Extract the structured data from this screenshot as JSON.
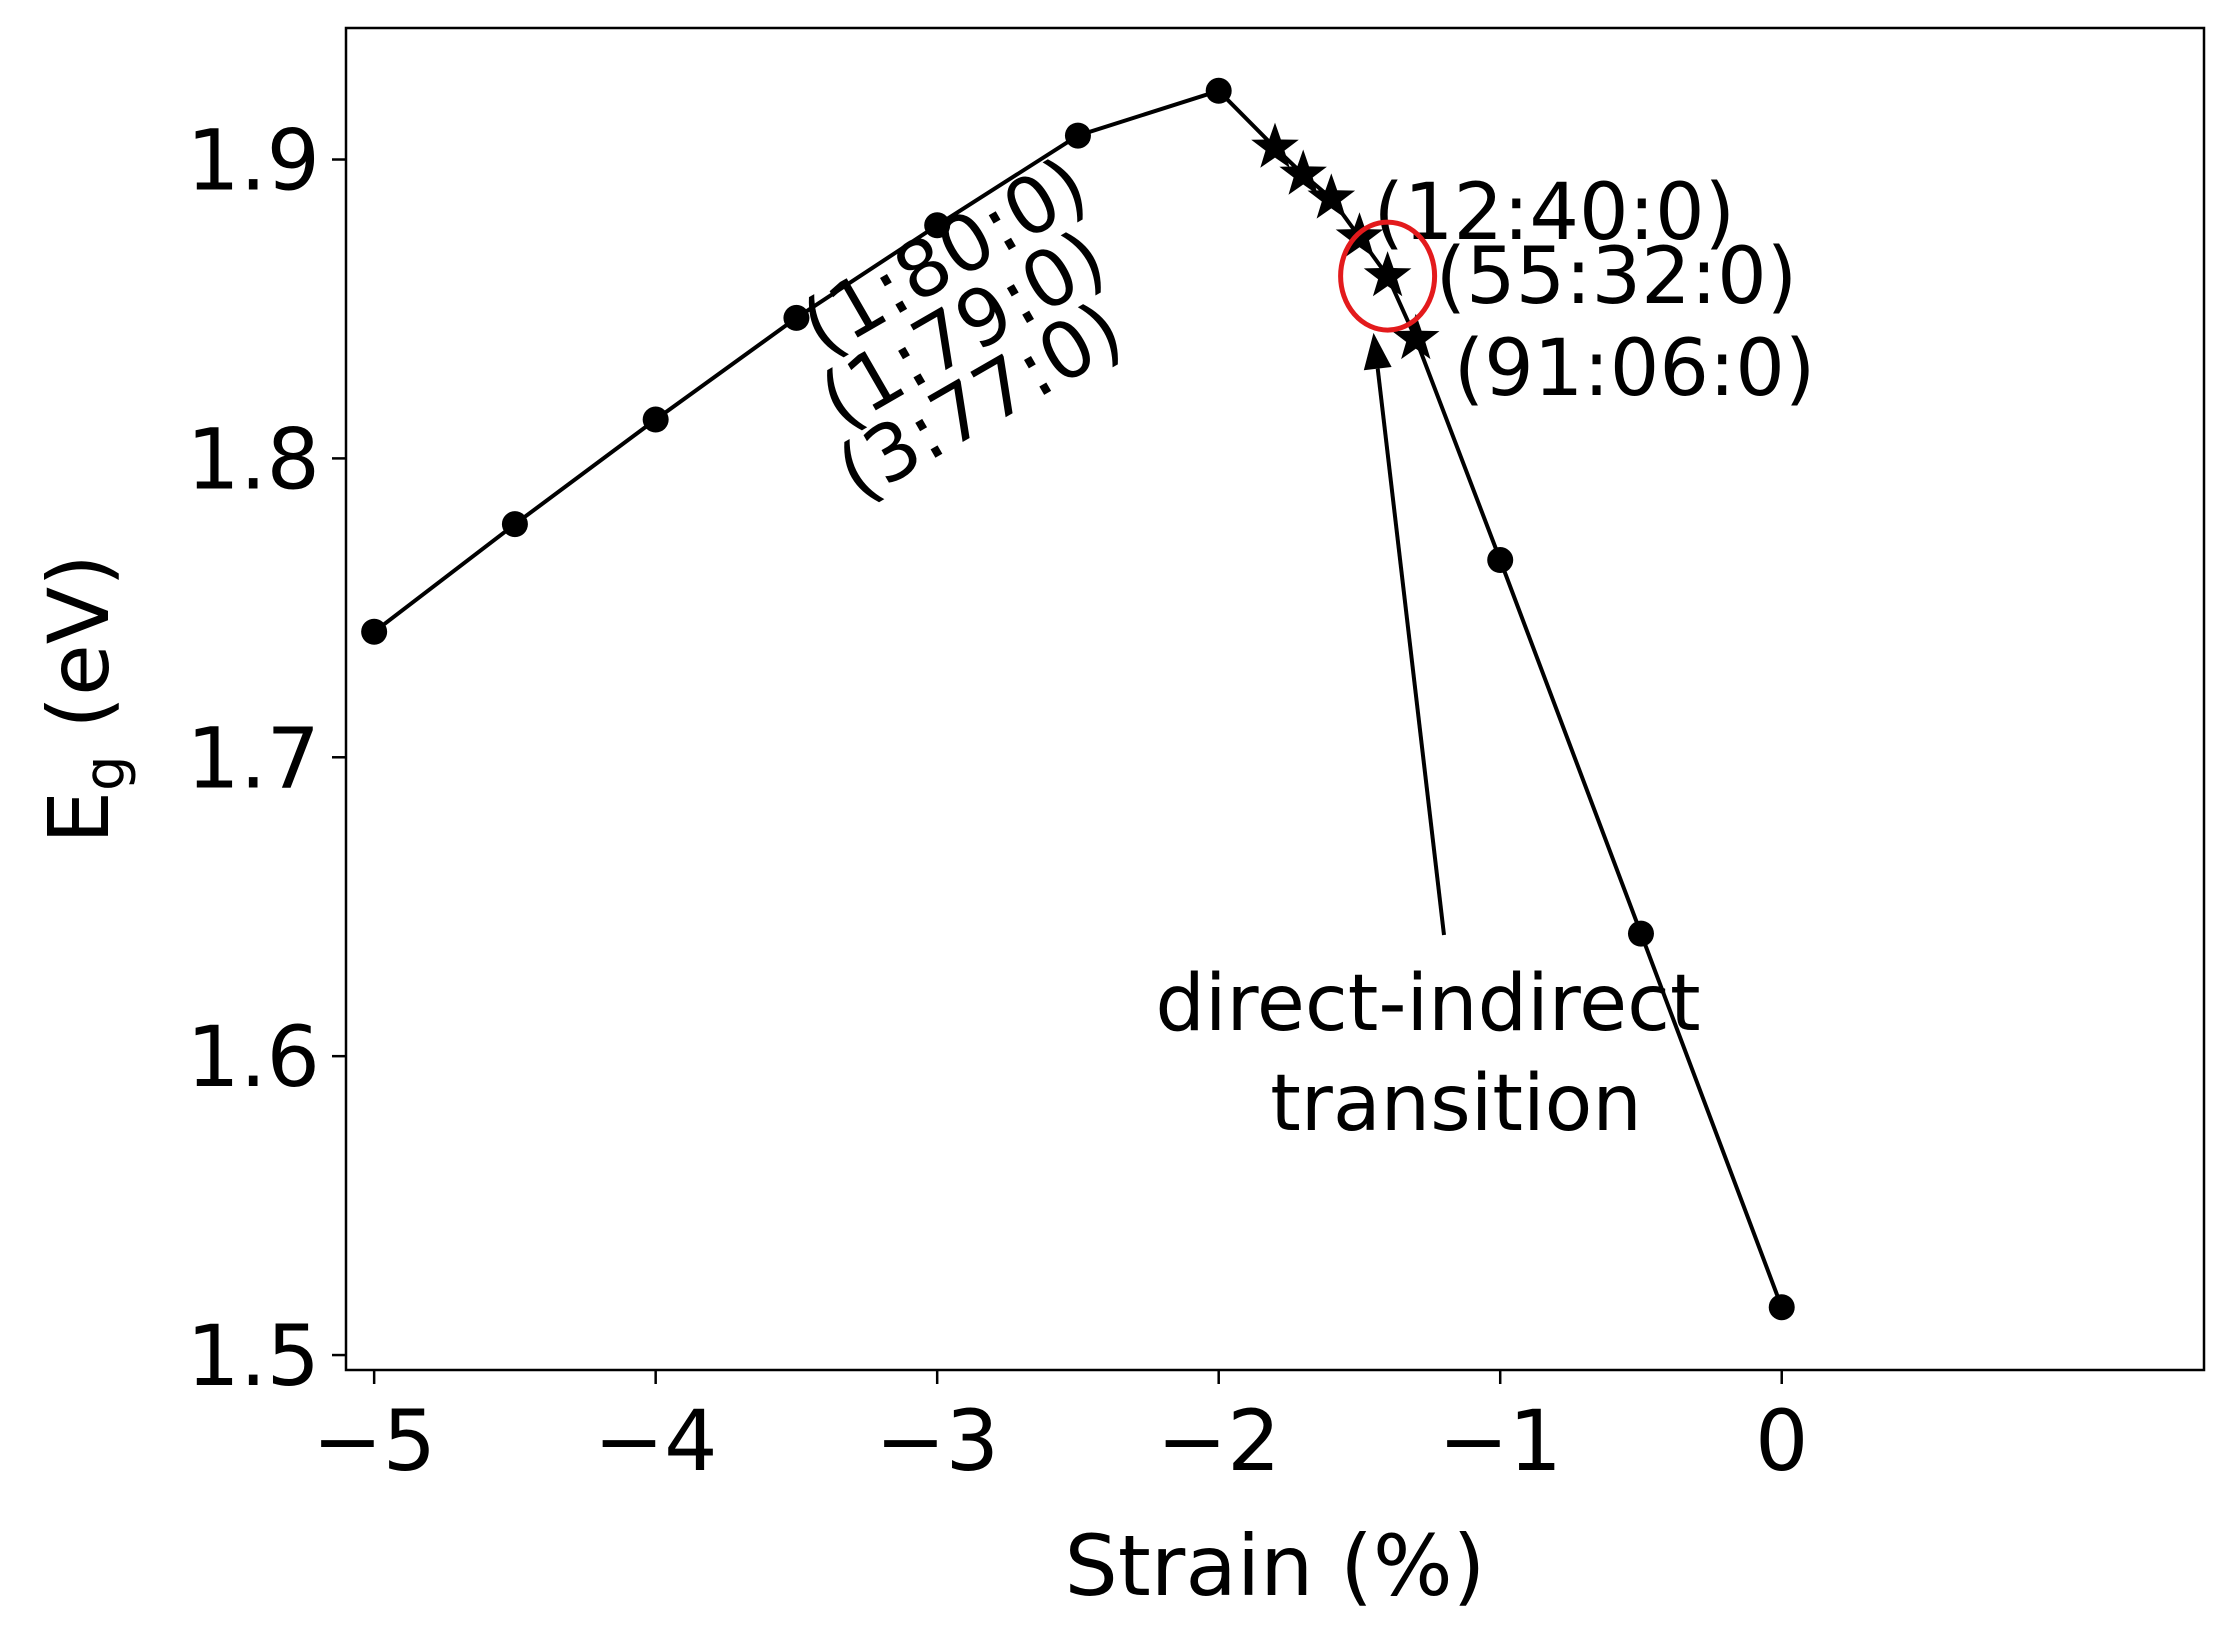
{
  "chart_data": {
    "type": "line",
    "xlabel": "Strain (%)",
    "ylabel": {
      "main": "E",
      "sub": "g",
      "rest": " (eV)"
    },
    "xlim": [
      -5.1,
      1.5
    ],
    "ylim": [
      1.495,
      1.944
    ],
    "x_ticks": [
      -5,
      -4,
      -3,
      -2,
      -1,
      0
    ],
    "x_tick_labels": [
      "−5",
      "−4",
      "−3",
      "−2",
      "−1",
      "0"
    ],
    "y_ticks": [
      1.5,
      1.6,
      1.7,
      1.8,
      1.9
    ],
    "y_tick_labels": [
      "1.5",
      "1.6",
      "1.7",
      "1.8",
      "1.9"
    ],
    "grid": false,
    "series": [
      {
        "marker": "circle",
        "color": "#000000",
        "x": [
          -5.0,
          -4.5,
          -4.0,
          -3.5,
          -3.0,
          -2.5,
          -2.0
        ],
        "y": [
          1.742,
          1.778,
          1.813,
          1.847,
          1.878,
          1.908,
          1.923
        ]
      },
      {
        "marker": "star",
        "color": "#000000",
        "x": [
          -1.8,
          -1.7,
          -1.6,
          -1.5,
          -1.4,
          -1.3
        ],
        "y": [
          1.904,
          1.895,
          1.887,
          1.874,
          1.861,
          1.84
        ]
      },
      {
        "marker": "circle",
        "color": "#000000",
        "x": [
          -1.0,
          -0.5,
          0.0
        ],
        "y": [
          1.766,
          1.641,
          1.516
        ]
      }
    ],
    "point_labels": [
      {
        "text": "(1:80:0)",
        "x": -1.8,
        "y": 1.904
      },
      {
        "text": "(1:79:0)",
        "x": -1.7,
        "y": 1.895
      },
      {
        "text": "(3:77:0)",
        "x": -1.6,
        "y": 1.887
      },
      {
        "text": "(12:40:0)",
        "x": -1.5,
        "y": 1.874
      },
      {
        "text": "(55:32:0)",
        "x": -1.4,
        "y": 1.861
      },
      {
        "text": "(91:06:0)",
        "x": -1.3,
        "y": 1.84
      }
    ],
    "highlight": {
      "x": -1.4,
      "y": 1.861,
      "color": "#e31a1c"
    },
    "annotation": {
      "lines": [
        "direct-indirect",
        "transition"
      ],
      "x": -2.0,
      "y": 1.62,
      "arrow_to": {
        "x": -1.45,
        "y": 1.842
      }
    }
  }
}
